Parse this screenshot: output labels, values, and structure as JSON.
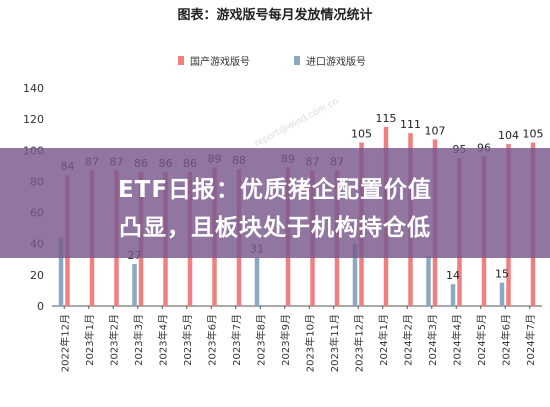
{
  "chart_data": {
    "type": "bar",
    "title": "图表：游戏版号每月发放情况统计",
    "categories": [
      "2022年12月",
      "2023年1月",
      "2023年2月",
      "2023年3月",
      "2023年4月",
      "2023年5月",
      "2023年6月",
      "2023年7月",
      "2023年8月",
      "2023年9月",
      "2023年10月",
      "2023年11月",
      "2023年12月",
      "2024年1月",
      "2024年2月",
      "2024年3月",
      "2024年4月",
      "2024年5月",
      "2024年6月",
      "2024年7月"
    ],
    "series": [
      {
        "name": "国产游戏版号",
        "color": "#f08080",
        "values": [
          84,
          87,
          87,
          86,
          86,
          86,
          89,
          88,
          null,
          89,
          87,
          87,
          105,
          115,
          111,
          107,
          95,
          96,
          104,
          105
        ],
        "labels": [
          "84",
          "87",
          "87",
          "86",
          "86",
          "86",
          "89",
          "88",
          "",
          "89",
          "87",
          "87",
          "105",
          "115",
          "111",
          "107",
          "95",
          "96",
          "104",
          "105"
        ]
      },
      {
        "name": "进口游戏版号",
        "color": "#8aa9c2",
        "values": [
          44,
          null,
          null,
          27,
          null,
          null,
          null,
          null,
          31,
          null,
          null,
          null,
          40,
          null,
          null,
          32,
          14,
          null,
          15,
          null
        ],
        "labels": [
          "",
          "",
          "",
          "27",
          "",
          "",
          "",
          "",
          "31",
          "",
          "",
          "",
          "",
          "",
          "",
          "",
          "14",
          "",
          "15",
          ""
        ]
      }
    ],
    "ylim": [
      0,
      140
    ],
    "yticks": [
      "0",
      "20",
      "40",
      "60",
      "80",
      "100",
      "120",
      "140"
    ],
    "legend_position": "top-center",
    "grid": false
  },
  "watermark": "report@wind.com.cn",
  "banner": {
    "line1": "ETF日报：优质猪企配置价值",
    "line2": "凸显，且板块处于机构持仓低"
  }
}
